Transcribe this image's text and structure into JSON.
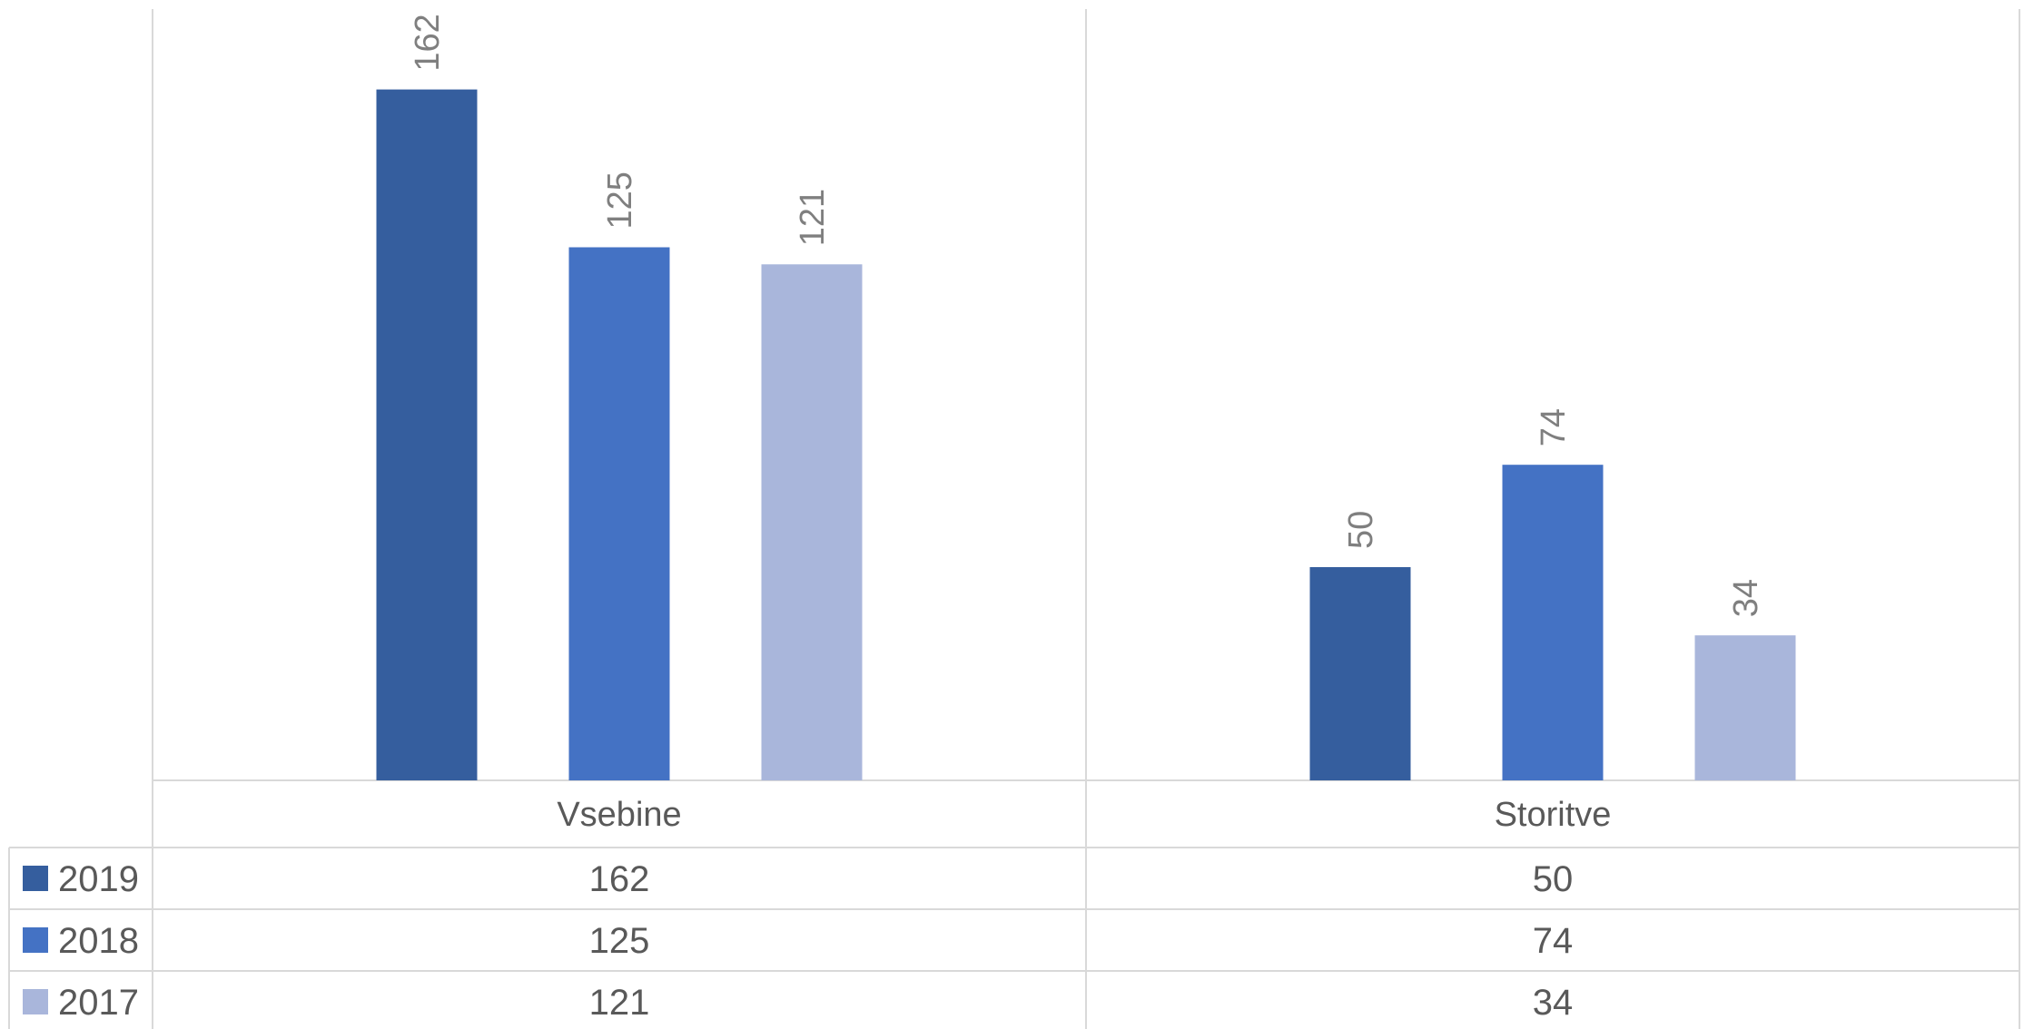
{
  "chart_data": {
    "type": "bar",
    "categories": [
      "Vsebine",
      "Storitve"
    ],
    "series": [
      {
        "name": "2019",
        "values": [
          162,
          50
        ],
        "color": "#355E9E"
      },
      {
        "name": "2018",
        "values": [
          125,
          74
        ],
        "color": "#4472C4"
      },
      {
        "name": "2017",
        "values": [
          121,
          34
        ],
        "color": "#A9B6DB"
      }
    ],
    "ylim": [
      0,
      180
    ],
    "data_labels": "rotated-above-bar",
    "data_table": true,
    "legend": "data-table-left",
    "grid": "vertical-category-separators"
  }
}
